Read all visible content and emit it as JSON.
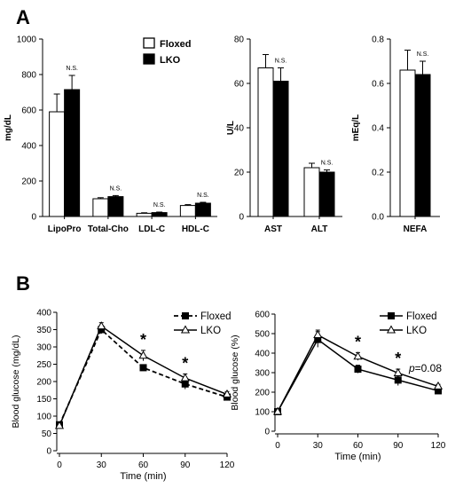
{
  "panels": {
    "a": "A",
    "b": "B"
  },
  "not_significant_label": "N.S.",
  "significance_marker": "*",
  "colors": {
    "floxed_fill": "#ffffff",
    "lko_fill": "#000000",
    "axis": "#000000"
  },
  "chart_data": [
    {
      "type": "bar",
      "panel": "A",
      "ylabel": "mg/dL",
      "ylim": [
        0,
        1000
      ],
      "yticks": [
        0,
        200,
        400,
        600,
        800,
        1000
      ],
      "categories": [
        "LipoPro",
        "Total-Cho",
        "LDL-C",
        "HDL-C"
      ],
      "legend": {
        "placement": "top-right",
        "entries": [
          "Floxed",
          "LKO"
        ]
      },
      "series": [
        {
          "name": "Floxed",
          "values": [
            590,
            100,
            18,
            62
          ],
          "errors": [
            100,
            6,
            3,
            5
          ]
        },
        {
          "name": "LKO",
          "values": [
            715,
            112,
            22,
            75
          ],
          "errors": [
            80,
            6,
            3,
            5
          ]
        }
      ],
      "annotations": [
        "N.S.",
        "N.S.",
        "N.S.",
        "N.S."
      ]
    },
    {
      "type": "bar",
      "panel": "A",
      "ylabel": "U/L",
      "ylim": [
        0,
        80
      ],
      "yticks": [
        0,
        20,
        40,
        60,
        80
      ],
      "categories": [
        "AST",
        "ALT"
      ],
      "series": [
        {
          "name": "Floxed",
          "values": [
            67,
            22
          ],
          "errors": [
            6,
            2
          ]
        },
        {
          "name": "LKO",
          "values": [
            61,
            20
          ],
          "errors": [
            6,
            1
          ]
        }
      ],
      "annotations": [
        "N.S.",
        "N.S."
      ]
    },
    {
      "type": "bar",
      "panel": "A",
      "ylabel": "mEq/L",
      "ylim": [
        0,
        0.8
      ],
      "yticks": [
        "0.0",
        "0.2",
        "0.4",
        "0.6",
        "0.8"
      ],
      "categories": [
        "NEFA"
      ],
      "series": [
        {
          "name": "Floxed",
          "values": [
            0.66
          ],
          "errors": [
            0.09
          ]
        },
        {
          "name": "LKO",
          "values": [
            0.64
          ],
          "errors": [
            0.06
          ]
        }
      ],
      "annotations": [
        "N.S."
      ]
    },
    {
      "type": "line",
      "panel": "B",
      "xlabel": "Time (min)",
      "ylabel": "Blood glucose (mg/dL)",
      "x": [
        0,
        30,
        60,
        90,
        120
      ],
      "xticks": [
        0,
        30,
        60,
        90,
        120
      ],
      "ylim": [
        0,
        400
      ],
      "yticks": [
        0,
        50,
        100,
        150,
        200,
        250,
        300,
        350,
        400
      ],
      "legend": {
        "placement": "top-right",
        "entries": [
          "Floxed",
          "LKO"
        ]
      },
      "series": [
        {
          "name": "Floxed",
          "marker": "square",
          "dashed": true,
          "values": [
            75,
            350,
            240,
            193,
            155
          ],
          "errors": [
            5,
            12,
            8,
            15,
            8
          ]
        },
        {
          "name": "LKO",
          "marker": "triangle",
          "dashed": false,
          "values": [
            72,
            360,
            275,
            210,
            163
          ],
          "errors": [
            5,
            10,
            15,
            12,
            8
          ]
        }
      ],
      "significance": [
        60,
        90
      ]
    },
    {
      "type": "line",
      "panel": "B",
      "xlabel": "Time (min)",
      "ylabel": "Blood glucose (%)",
      "x": [
        0,
        30,
        60,
        90,
        120
      ],
      "xticks": [
        0,
        30,
        60,
        90,
        120
      ],
      "ylim": [
        0,
        600
      ],
      "yticks": [
        0,
        100,
        200,
        300,
        400,
        500,
        600
      ],
      "legend": {
        "placement": "top-right",
        "entries": [
          "Floxed",
          "LKO"
        ]
      },
      "series": [
        {
          "name": "Floxed",
          "marker": "square",
          "dashed": false,
          "values": [
            100,
            470,
            318,
            262,
            207
          ],
          "errors": [
            5,
            40,
            20,
            28,
            10
          ]
        },
        {
          "name": "LKO",
          "marker": "triangle",
          "dashed": false,
          "values": [
            100,
            493,
            383,
            298,
            230
          ],
          "errors": [
            5,
            25,
            20,
            20,
            10
          ]
        }
      ],
      "significance": [
        60,
        90
      ],
      "pvalue": {
        "p_symbol": "p",
        "text": "=0.08",
        "at_x": 120
      }
    }
  ]
}
